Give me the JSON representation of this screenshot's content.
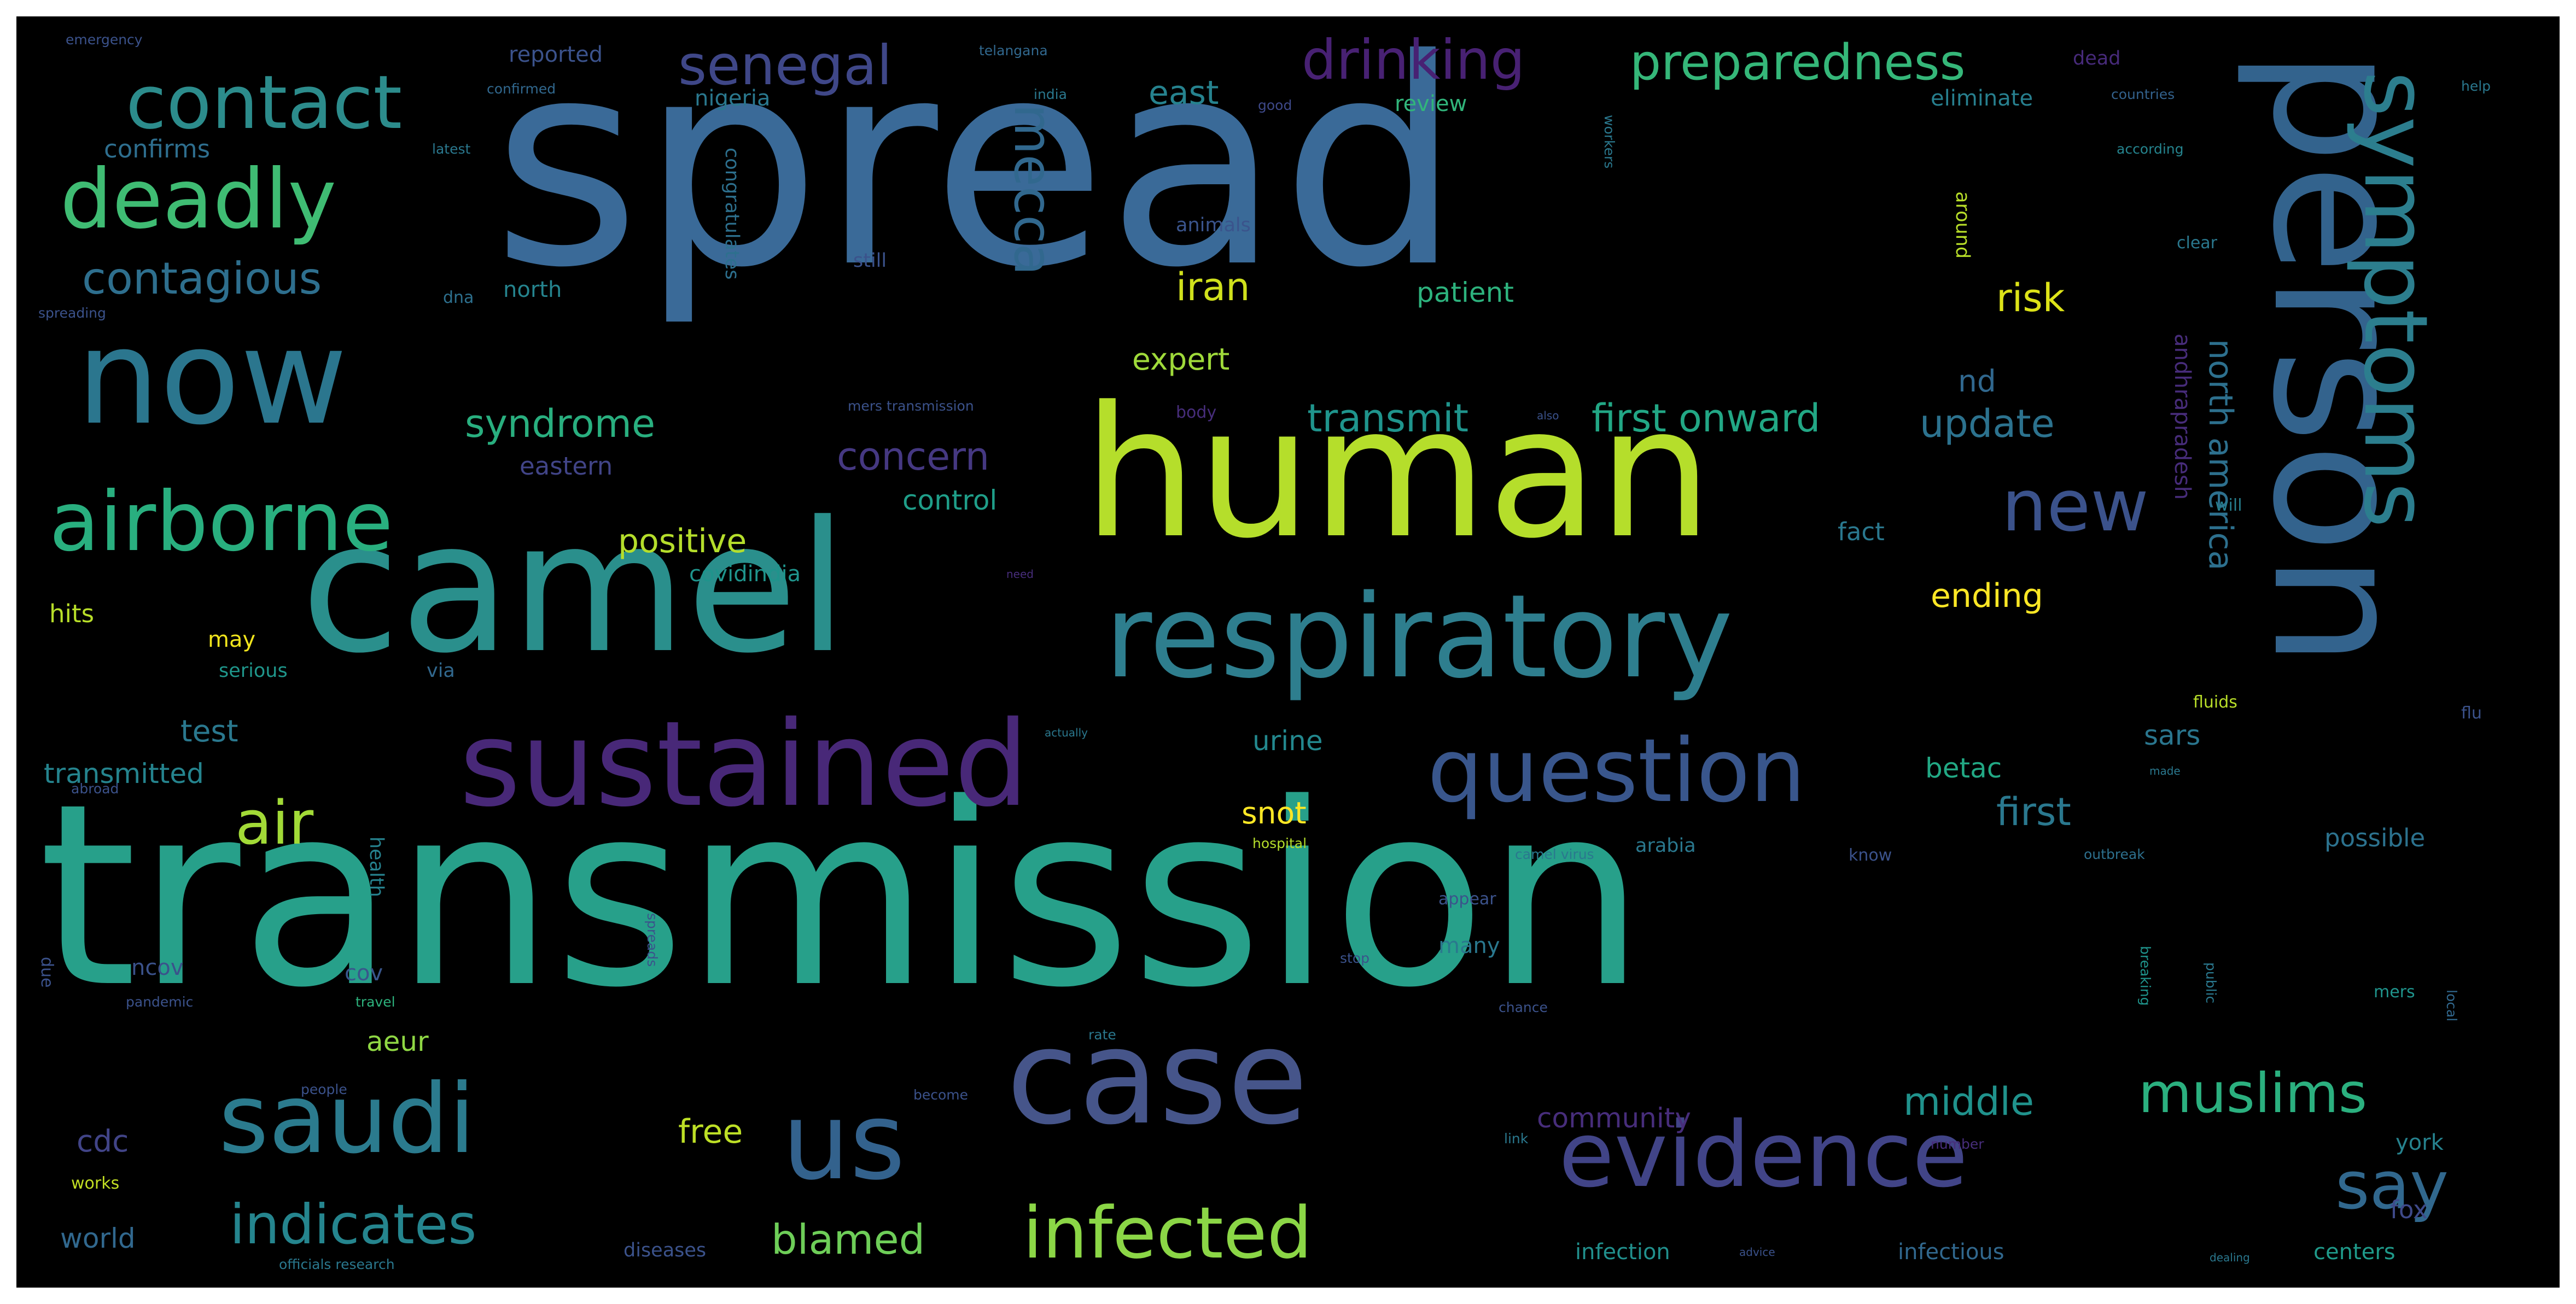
{
  "wordcloud": {
    "background": "#000000",
    "colormap": "viridis",
    "words": [
      {
        "text": "transmission",
        "color": "#27a08a"
      },
      {
        "text": "spread",
        "color": "#3a6a98"
      },
      {
        "text": "human",
        "color": "#b5de2b"
      },
      {
        "text": "camel",
        "color": "#2a8f8c"
      },
      {
        "text": "person",
        "color": "#33638d"
      },
      {
        "text": "respiratory",
        "color": "#2e7e8e"
      },
      {
        "text": "case",
        "color": "#46558a"
      },
      {
        "text": "sustained",
        "color": "#482878"
      },
      {
        "text": "question",
        "color": "#39568c"
      },
      {
        "text": "now",
        "color": "#2b768e"
      },
      {
        "text": "symptoms",
        "color": "#2c7e8e"
      },
      {
        "text": "evidence",
        "color": "#414487"
      },
      {
        "text": "saudi",
        "color": "#2b7b8e"
      },
      {
        "text": "us",
        "color": "#33628d"
      },
      {
        "text": "airborne",
        "color": "#29af7f"
      },
      {
        "text": "deadly",
        "color": "#3fbc73"
      },
      {
        "text": "contact",
        "color": "#2c8c8c"
      },
      {
        "text": "infected",
        "color": "#8bd646"
      },
      {
        "text": "new",
        "color": "#3b528b"
      },
      {
        "text": "say",
        "color": "#31688e"
      },
      {
        "text": "indicates",
        "color": "#25858e"
      },
      {
        "text": "muslims",
        "color": "#2bb07f"
      },
      {
        "text": "air",
        "color": "#a2da37"
      },
      {
        "text": "senegal",
        "color": "#3f4788"
      },
      {
        "text": "drinking",
        "color": "#482173"
      },
      {
        "text": "preparedness",
        "color": "#35b779"
      },
      {
        "text": "mecca",
        "color": "#31688e"
      },
      {
        "text": "contagious",
        "color": "#2e6f8e"
      },
      {
        "text": "syndrome",
        "color": "#29af7f"
      },
      {
        "text": "north america",
        "color": "#2d708e"
      },
      {
        "text": "first onward",
        "color": "#22a785"
      },
      {
        "text": "transmit",
        "color": "#1f948c"
      },
      {
        "text": "blamed",
        "color": "#6ece58"
      },
      {
        "text": "middle",
        "color": "#20928c"
      },
      {
        "text": "update",
        "color": "#2c728e"
      },
      {
        "text": "concern",
        "color": "#453882"
      },
      {
        "text": "iran",
        "color": "#d0e11c"
      },
      {
        "text": "risk",
        "color": "#dde318"
      },
      {
        "text": "east",
        "color": "#26828e"
      },
      {
        "text": "positive",
        "color": "#b5de2b"
      },
      {
        "text": "ending",
        "color": "#fde725"
      },
      {
        "text": "first",
        "color": "#2a788e"
      },
      {
        "text": "free",
        "color": "#bddf26"
      },
      {
        "text": "community",
        "color": "#472d7b"
      },
      {
        "text": "expert",
        "color": "#9fda3a"
      },
      {
        "text": "cdc",
        "color": "#414487"
      },
      {
        "text": "world",
        "color": "#31688e"
      },
      {
        "text": "snot",
        "color": "#fde725"
      },
      {
        "text": "patient",
        "color": "#2db27d"
      },
      {
        "text": "transmitted",
        "color": "#25848e"
      },
      {
        "text": "test",
        "color": "#2a788e"
      },
      {
        "text": "urine",
        "color": "#23888e"
      },
      {
        "text": "betac",
        "color": "#22a884"
      },
      {
        "text": "sars",
        "color": "#2a768e"
      },
      {
        "text": "andhrapradesh",
        "color": "#472c7a"
      },
      {
        "text": "control",
        "color": "#1f9e89"
      },
      {
        "text": "confirms",
        "color": "#2e6e8e"
      },
      {
        "text": "eastern",
        "color": "#414487"
      },
      {
        "text": "fact",
        "color": "#2a788e"
      },
      {
        "text": "aeur",
        "color": "#8fd744"
      },
      {
        "text": "hits",
        "color": "#b8de29"
      },
      {
        "text": "may",
        "color": "#f1e51d"
      },
      {
        "text": "nd",
        "color": "#30678d"
      },
      {
        "text": "possible",
        "color": "#2c728e"
      },
      {
        "text": "nigeria",
        "color": "#2a788e"
      },
      {
        "text": "eliminate",
        "color": "#277f8e"
      },
      {
        "text": "reported",
        "color": "#3b528b"
      },
      {
        "text": "review",
        "color": "#31b57b"
      },
      {
        "text": "north",
        "color": "#25848e"
      },
      {
        "text": "still",
        "color": "#3b528b"
      },
      {
        "text": "york",
        "color": "#26828e"
      },
      {
        "text": "fox",
        "color": "#3e4989"
      },
      {
        "text": "centers",
        "color": "#1f9a8a"
      },
      {
        "text": "infection",
        "color": "#21908d"
      },
      {
        "text": "infectious",
        "color": "#31688e"
      },
      {
        "text": "diseases",
        "color": "#3b528b"
      },
      {
        "text": "cov",
        "color": "#39568c"
      },
      {
        "text": "many",
        "color": "#2a788e"
      },
      {
        "text": "ncov",
        "color": "#3b528b"
      },
      {
        "text": "serious",
        "color": "#1f968b"
      },
      {
        "text": "via",
        "color": "#31688e"
      },
      {
        "text": "covidindia",
        "color": "#1f948c"
      },
      {
        "text": "health",
        "color": "#26828e"
      },
      {
        "text": "congratulates",
        "color": "#2d708e"
      },
      {
        "text": "animals",
        "color": "#3a548c"
      },
      {
        "text": "dna",
        "color": "#2d708e"
      },
      {
        "text": "around",
        "color": "#b8de29"
      },
      {
        "text": "dead",
        "color": "#472a7a"
      },
      {
        "text": "latest",
        "color": "#2a788e"
      },
      {
        "text": "countries",
        "color": "#33628d"
      },
      {
        "text": "according",
        "color": "#25848e"
      },
      {
        "text": "clear",
        "color": "#2a788e"
      },
      {
        "text": "will",
        "color": "#277f8e"
      },
      {
        "text": "body",
        "color": "#472d7b"
      },
      {
        "text": "know",
        "color": "#3b528b"
      },
      {
        "text": "arabia",
        "color": "#2a788e"
      },
      {
        "text": "appear",
        "color": "#3b528b"
      },
      {
        "text": "officials research",
        "color": "#2a788e"
      },
      {
        "text": "works",
        "color": "#c2df23"
      },
      {
        "text": "people",
        "color": "#3b528b"
      },
      {
        "text": "travel",
        "color": "#2db27d"
      },
      {
        "text": "spreading",
        "color": "#3b528b"
      },
      {
        "text": "pandemic",
        "color": "#3b528b"
      },
      {
        "text": "confirmed",
        "color": "#31688e"
      },
      {
        "text": "telangana",
        "color": "#31688e"
      },
      {
        "text": "india",
        "color": "#2a788e"
      },
      {
        "text": "good",
        "color": "#3e4989"
      },
      {
        "text": "help",
        "color": "#2a788e"
      },
      {
        "text": "fluids",
        "color": "#b8de29"
      },
      {
        "text": "made",
        "color": "#2a788e"
      },
      {
        "text": "flu",
        "color": "#3b528b"
      },
      {
        "text": "local",
        "color": "#31688e"
      },
      {
        "text": "mers",
        "color": "#1f948c"
      },
      {
        "text": "outbreak",
        "color": "#2d708e"
      },
      {
        "text": "spreads",
        "color": "#3b528b"
      },
      {
        "text": "public",
        "color": "#2a788e"
      },
      {
        "text": "breaking",
        "color": "#1f948c"
      },
      {
        "text": "chance",
        "color": "#3b528b"
      },
      {
        "text": "number",
        "color": "#472d7b"
      },
      {
        "text": "become",
        "color": "#3b528b"
      },
      {
        "text": "link",
        "color": "#2a788e"
      },
      {
        "text": "hospital",
        "color": "#b5de2b"
      },
      {
        "text": "mers transmission",
        "color": "#3b528b"
      },
      {
        "text": "camel virus",
        "color": "#2a788e"
      },
      {
        "text": "emergency",
        "color": "#3b528b"
      },
      {
        "text": "due",
        "color": "#3b528b"
      },
      {
        "text": "need",
        "color": "#472d7b"
      },
      {
        "text": "actually",
        "color": "#2a788e"
      },
      {
        "text": "rate",
        "color": "#2a788e"
      },
      {
        "text": "stop",
        "color": "#3b528b"
      },
      {
        "text": "abroad",
        "color": "#3b528b"
      },
      {
        "text": "dealing",
        "color": "#2a788e"
      },
      {
        "text": "advice",
        "color": "#3b528b"
      },
      {
        "text": "workers",
        "color": "#2a788e"
      },
      {
        "text": "also",
        "color": "#3b528b"
      }
    ]
  }
}
